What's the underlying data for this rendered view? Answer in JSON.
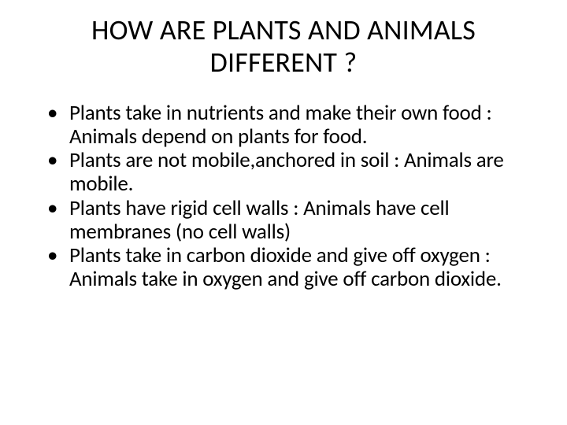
{
  "title": "HOW ARE PLANTS AND ANIMALS DIFFERENT ?",
  "bullets": [
    "Plants take in nutrients and make their own food : Animals depend on plants for food.",
    "Plants are not mobile,anchored in soil : Animals are mobile.",
    "Plants have rigid cell walls : Animals have cell membranes (no cell walls)",
    "Plants take in carbon dioxide and give off oxygen : Animals take in oxygen and give off carbon dioxide."
  ],
  "colors": {
    "background": "#ffffff",
    "text": "#000000"
  },
  "typography": {
    "title_fontsize": 36,
    "body_fontsize": 27,
    "font_family": "Calibri"
  }
}
